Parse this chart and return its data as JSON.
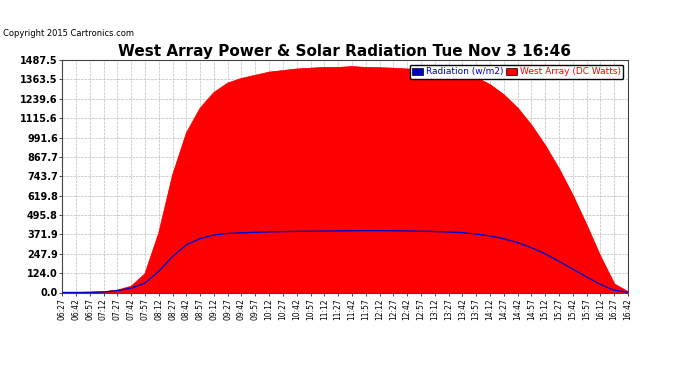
{
  "title": "West Array Power & Solar Radiation Tue Nov 3 16:46",
  "copyright": "Copyright 2015 Cartronics.com",
  "legend_radiation": "Radiation (w/m2)",
  "legend_west": "West Array (DC Watts)",
  "yticks": [
    0.0,
    124.0,
    247.9,
    371.9,
    495.8,
    619.8,
    743.7,
    867.7,
    991.6,
    1115.6,
    1239.6,
    1363.5,
    1487.5
  ],
  "ymax": 1487.5,
  "ymin": 0.0,
  "background_color": "#ffffff",
  "plot_bg_color": "#ffffff",
  "grid_color": "#bbbbbb",
  "radiation_color": "#0000cc",
  "west_array_color": "#ff0000",
  "title_fontsize": 11,
  "x_labels": [
    "06:27",
    "06:42",
    "06:57",
    "07:12",
    "07:27",
    "07:42",
    "07:57",
    "08:12",
    "08:27",
    "08:42",
    "08:57",
    "09:12",
    "09:27",
    "09:42",
    "09:57",
    "10:12",
    "10:27",
    "10:42",
    "10:57",
    "11:12",
    "11:27",
    "11:42",
    "11:57",
    "12:12",
    "12:27",
    "12:42",
    "12:57",
    "13:12",
    "13:27",
    "13:42",
    "13:57",
    "14:12",
    "14:27",
    "14:42",
    "14:57",
    "15:12",
    "15:27",
    "15:42",
    "15:57",
    "16:12",
    "16:27",
    "16:42"
  ],
  "west_array_values": [
    0,
    0,
    2,
    5,
    15,
    40,
    120,
    380,
    750,
    1020,
    1180,
    1280,
    1340,
    1370,
    1390,
    1410,
    1420,
    1430,
    1435,
    1440,
    1440,
    1445,
    1440,
    1438,
    1435,
    1430,
    1425,
    1418,
    1410,
    1400,
    1375,
    1330,
    1265,
    1180,
    1070,
    940,
    790,
    620,
    430,
    230,
    55,
    5
  ],
  "radiation_values": [
    0,
    0,
    1,
    3,
    12,
    28,
    60,
    135,
    230,
    305,
    345,
    368,
    378,
    382,
    385,
    388,
    390,
    391,
    392,
    393,
    394,
    395,
    396,
    396,
    395,
    394,
    392,
    390,
    387,
    383,
    374,
    362,
    344,
    320,
    287,
    248,
    200,
    150,
    100,
    52,
    15,
    2
  ]
}
